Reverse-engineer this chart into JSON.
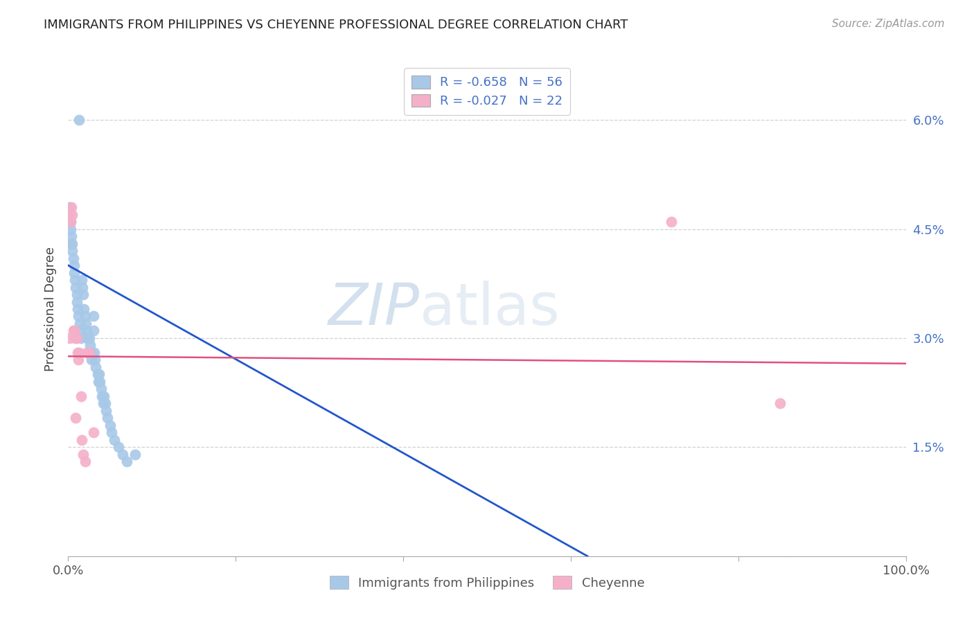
{
  "title": "IMMIGRANTS FROM PHILIPPINES VS CHEYENNE PROFESSIONAL DEGREE CORRELATION CHART",
  "source": "Source: ZipAtlas.com",
  "ylabel": "Professional Degree",
  "yticks_pct": [
    0.0,
    1.5,
    3.0,
    4.5,
    6.0
  ],
  "xlim": [
    0.0,
    1.0
  ],
  "ylim": [
    0.0,
    0.068
  ],
  "legend_blue_r": "-0.658",
  "legend_blue_n": "56",
  "legend_pink_r": "-0.027",
  "legend_pink_n": "22",
  "legend_label_blue": "Immigrants from Philippines",
  "legend_label_pink": "Cheyenne",
  "blue_scatter_x": [
    0.001,
    0.002,
    0.003,
    0.003,
    0.004,
    0.004,
    0.005,
    0.005,
    0.006,
    0.007,
    0.007,
    0.008,
    0.009,
    0.01,
    0.01,
    0.011,
    0.012,
    0.013,
    0.014,
    0.015,
    0.015,
    0.016,
    0.017,
    0.018,
    0.019,
    0.02,
    0.021,
    0.022,
    0.023,
    0.025,
    0.026,
    0.027,
    0.028,
    0.03,
    0.03,
    0.031,
    0.032,
    0.033,
    0.035,
    0.036,
    0.037,
    0.038,
    0.039,
    0.04,
    0.042,
    0.043,
    0.044,
    0.045,
    0.047,
    0.05,
    0.052,
    0.055,
    0.06,
    0.065,
    0.07,
    0.08
  ],
  "blue_scatter_y": [
    0.048,
    0.047,
    0.046,
    0.045,
    0.044,
    0.043,
    0.043,
    0.042,
    0.041,
    0.04,
    0.039,
    0.038,
    0.037,
    0.036,
    0.035,
    0.034,
    0.033,
    0.06,
    0.032,
    0.031,
    0.03,
    0.038,
    0.037,
    0.036,
    0.034,
    0.033,
    0.032,
    0.031,
    0.03,
    0.03,
    0.029,
    0.028,
    0.027,
    0.033,
    0.031,
    0.028,
    0.027,
    0.026,
    0.025,
    0.024,
    0.025,
    0.024,
    0.023,
    0.022,
    0.021,
    0.022,
    0.021,
    0.02,
    0.019,
    0.018,
    0.017,
    0.016,
    0.015,
    0.014,
    0.013,
    0.014
  ],
  "pink_scatter_x": [
    0.001,
    0.002,
    0.003,
    0.004,
    0.005,
    0.006,
    0.007,
    0.008,
    0.009,
    0.01,
    0.011,
    0.012,
    0.013,
    0.015,
    0.016,
    0.018,
    0.02,
    0.022,
    0.025,
    0.03,
    0.72,
    0.85
  ],
  "pink_scatter_y": [
    0.03,
    0.047,
    0.046,
    0.048,
    0.047,
    0.031,
    0.031,
    0.03,
    0.019,
    0.03,
    0.028,
    0.027,
    0.028,
    0.022,
    0.016,
    0.014,
    0.013,
    0.028,
    0.028,
    0.017,
    0.046,
    0.021
  ],
  "blue_line_x0": 0.0,
  "blue_line_y0": 0.04,
  "blue_line_x1": 0.62,
  "blue_line_y1": 0.0,
  "pink_line_x0": 0.0,
  "pink_line_y0": 0.0275,
  "pink_line_x1": 1.0,
  "pink_line_y1": 0.0265,
  "scatter_color_blue": "#a8c8e8",
  "scatter_color_pink": "#f4b0c8",
  "line_color_blue": "#2255cc",
  "line_color_pink": "#e05080",
  "watermark_zip": "ZIP",
  "watermark_atlas": "atlas",
  "background_color": "#ffffff",
  "grid_color": "#cccccc",
  "title_color": "#222222",
  "source_color": "#999999",
  "ytick_color": "#4472c4",
  "xtick_color": "#555555"
}
